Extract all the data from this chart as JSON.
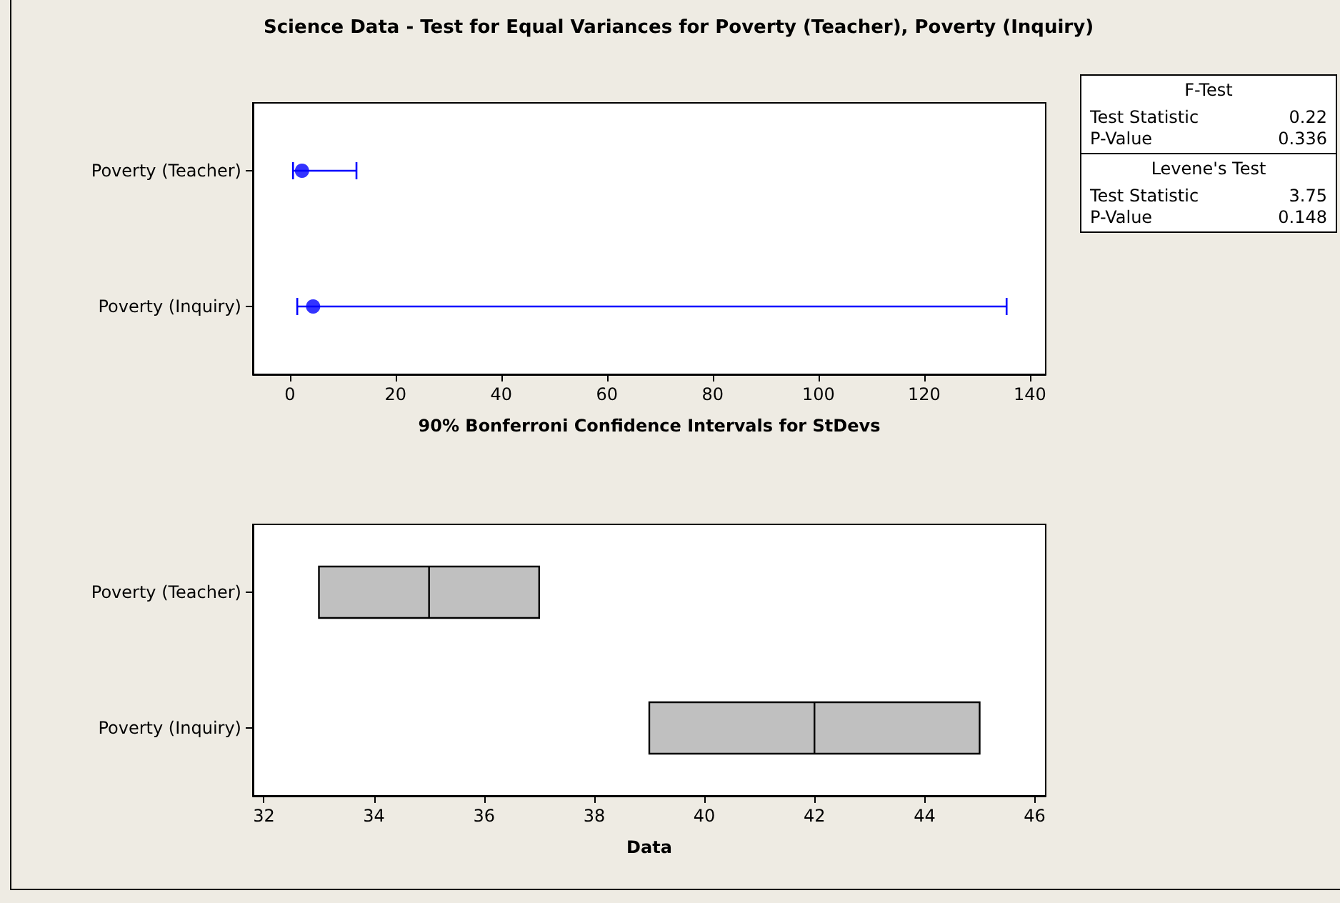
{
  "chart_data": [
    {
      "type": "scatter",
      "title": "Science Data - Test for Equal Variances for Poverty (Teacher), Poverty (Inquiry)",
      "orientation": "horizontal",
      "categories": [
        "Poverty (Teacher)",
        "Poverty (Inquiry)"
      ],
      "values": [
        2.3,
        4.4
      ],
      "errors": [
        [
          0.6,
          12.6
        ],
        [
          1.4,
          135.6
        ]
      ],
      "color": "#0000ff",
      "marker": "circle",
      "xlabel": "90% Bonferroni Confidence Intervals for StDevs",
      "xlim": [
        -7,
        143
      ],
      "xticks": [
        0,
        20,
        40,
        60,
        80,
        100,
        120,
        140
      ],
      "grid": false
    },
    {
      "type": "box",
      "orientation": "horizontal",
      "categories": [
        "Poverty (Teacher)",
        "Poverty (Inquiry)"
      ],
      "color": "#c0c0c0",
      "boxes": [
        {
          "low": 33,
          "q1": 33,
          "median": 35,
          "q3": 37,
          "high": 37
        },
        {
          "low": 39,
          "q1": 39,
          "median": 42,
          "q3": 45,
          "high": 45
        }
      ],
      "xlabel": "Data",
      "xlim": [
        31.8,
        46.2
      ],
      "xticks": [
        32,
        34,
        36,
        38,
        40,
        42,
        44,
        46
      ],
      "grid": false
    },
    {
      "type": "other",
      "annotations": [
        "F-Test",
        "Test Statistic",
        "0.22",
        "P-Value",
        "0.336",
        "Levene's Test",
        "Test Statistic",
        "3.75",
        "P-Value",
        "0.148"
      ]
    }
  ]
}
